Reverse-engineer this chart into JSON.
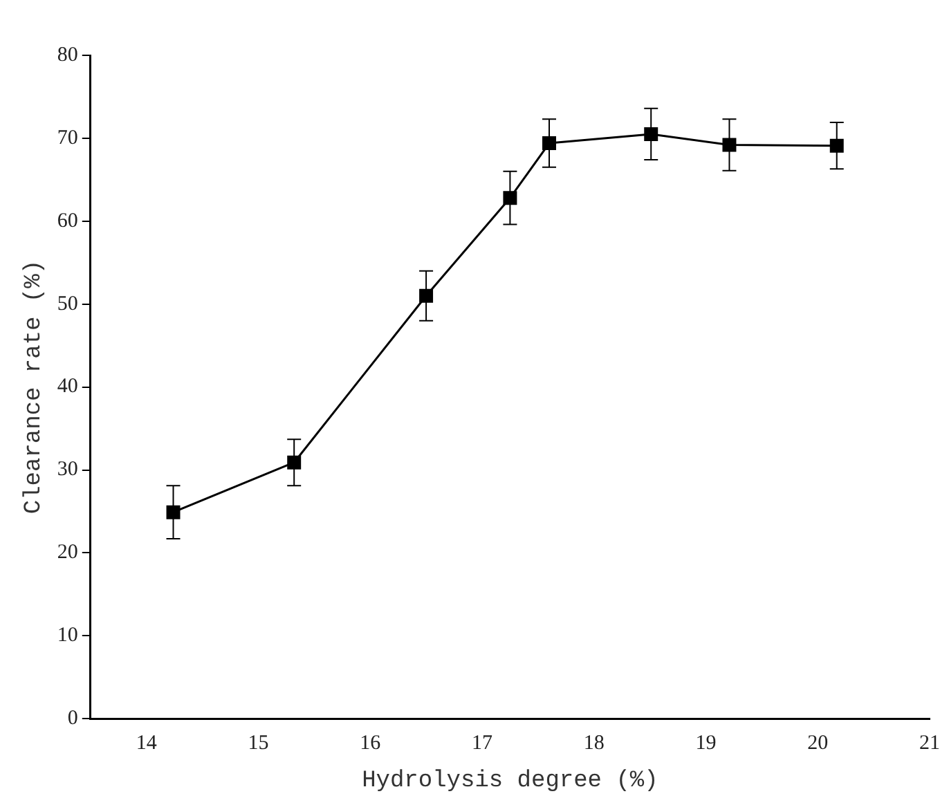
{
  "chart_data": {
    "type": "line",
    "xlabel": "Hydrolysis degree (%)",
    "ylabel": "Clearance rate (%)",
    "x": [
      14.24,
      15.32,
      16.5,
      17.25,
      17.6,
      18.51,
      19.21,
      20.17
    ],
    "series": [
      {
        "color": "#000000",
        "values": [
          24.9,
          30.9,
          51,
          62.8,
          69.4,
          70.5,
          69.2,
          69.1
        ],
        "errors": [
          3.2,
          2.8,
          3,
          3.2,
          2.9,
          3.1,
          3.1,
          2.8
        ]
      }
    ],
    "xlim": [
      13.5,
      21
    ],
    "xticks": [
      14,
      15,
      16,
      17,
      18,
      19,
      20,
      21
    ],
    "ylim": [
      0,
      80
    ],
    "yticks": [
      0,
      10,
      20,
      30,
      40,
      50,
      60,
      70,
      80
    ],
    "grid": false,
    "legend": false,
    "marker": "square",
    "line_style": "solid"
  }
}
